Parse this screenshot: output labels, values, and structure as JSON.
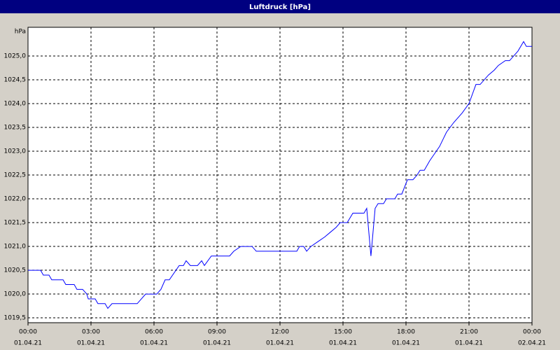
{
  "chart_data": {
    "type": "line",
    "title": "Luftdruck [hPa]",
    "y_label": "hPa",
    "color": "#0000ff",
    "grid": true,
    "xlim": [
      0,
      24
    ],
    "ylim": [
      1019.4,
      1025.6
    ],
    "xticks": [
      {
        "value": 0,
        "label": "00:00",
        "date": "01.04.21"
      },
      {
        "value": 3,
        "label": "03:00",
        "date": "01.04.21"
      },
      {
        "value": 6,
        "label": "06:00",
        "date": "01.04.21"
      },
      {
        "value": 9,
        "label": "09:00",
        "date": "01.04.21"
      },
      {
        "value": 12,
        "label": "12:00",
        "date": "01.04.21"
      },
      {
        "value": 15,
        "label": "15:00",
        "date": "01.04.21"
      },
      {
        "value": 18,
        "label": "18:00",
        "date": "01.04.21"
      },
      {
        "value": 21,
        "label": "21:00",
        "date": "01.04.21"
      },
      {
        "value": 24,
        "label": "00:00",
        "date": "02.04.21"
      }
    ],
    "yticks": [
      {
        "value": 1019.5,
        "label": "1019,5"
      },
      {
        "value": 1020,
        "label": "1020,0"
      },
      {
        "value": 1020.5,
        "label": "1020,5"
      },
      {
        "value": 1021,
        "label": "1021,0"
      },
      {
        "value": 1021.5,
        "label": "1021,5"
      },
      {
        "value": 1022,
        "label": "1022,0"
      },
      {
        "value": 1022.5,
        "label": "1022,5"
      },
      {
        "value": 1023,
        "label": "1023,0"
      },
      {
        "value": 1023.5,
        "label": "1023,5"
      },
      {
        "value": 1024,
        "label": "1024,0"
      },
      {
        "value": 1024.5,
        "label": "1024,5"
      },
      {
        "value": 1025,
        "label": "1025,0"
      }
    ],
    "x": [
      0,
      0.6,
      0.73,
      1.0,
      1.13,
      1.67,
      1.8,
      2.2,
      2.33,
      2.6,
      2.8,
      2.87,
      3.2,
      3.33,
      3.67,
      3.8,
      4.0,
      5.2,
      5.4,
      5.6,
      6.13,
      6.33,
      6.53,
      6.73,
      7.2,
      7.4,
      7.53,
      7.73,
      8.07,
      8.27,
      8.4,
      8.73,
      9.6,
      9.8,
      10.13,
      10.67,
      10.87,
      12.8,
      12.93,
      13.13,
      13.27,
      13.47,
      13.8,
      14.13,
      14.4,
      14.67,
      14.87,
      15.2,
      15.47,
      16.0,
      16.13,
      16.33,
      16.53,
      16.67,
      16.93,
      17.07,
      17.47,
      17.6,
      17.8,
      18.07,
      18.33,
      18.53,
      18.67,
      18.87,
      19.13,
      19.6,
      19.93,
      20.27,
      20.67,
      21.0,
      21.33,
      21.53,
      21.93,
      22.2,
      22.4,
      22.73,
      22.93,
      23.33,
      23.6,
      23.73,
      24.0
    ],
    "values": [
      1020.5,
      1020.5,
      1020.4,
      1020.4,
      1020.3,
      1020.3,
      1020.2,
      1020.2,
      1020.1,
      1020.1,
      1020.0,
      1019.9,
      1019.9,
      1019.8,
      1019.8,
      1019.7,
      1019.8,
      1019.8,
      1019.9,
      1020.0,
      1020.0,
      1020.1,
      1020.3,
      1020.3,
      1020.6,
      1020.6,
      1020.7,
      1020.6,
      1020.6,
      1020.7,
      1020.6,
      1020.8,
      1020.8,
      1020.9,
      1021.0,
      1021.0,
      1020.9,
      1020.9,
      1021.0,
      1021.0,
      1020.9,
      1021.0,
      1021.1,
      1021.2,
      1021.3,
      1021.4,
      1021.5,
      1021.5,
      1021.7,
      1021.7,
      1021.8,
      1020.8,
      1021.8,
      1021.9,
      1021.9,
      1022.0,
      1022.0,
      1022.1,
      1022.1,
      1022.4,
      1022.4,
      1022.5,
      1022.6,
      1022.6,
      1022.8,
      1023.1,
      1023.4,
      1023.6,
      1023.8,
      1024.0,
      1024.4,
      1024.4,
      1024.6,
      1024.7,
      1024.8,
      1024.9,
      1024.9,
      1025.1,
      1025.3,
      1025.2,
      1025.2
    ]
  }
}
